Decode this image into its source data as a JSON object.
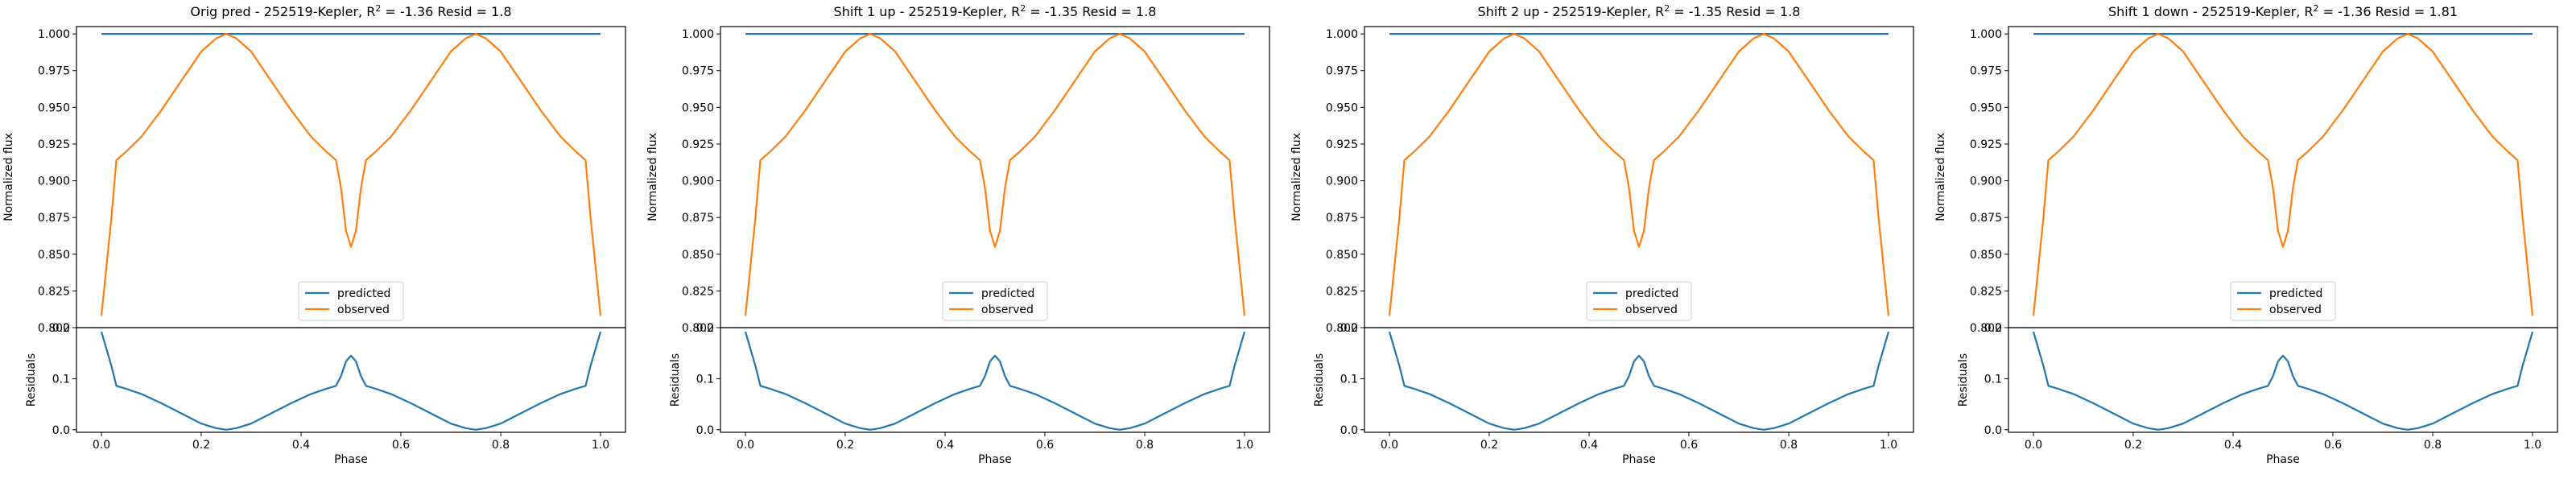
{
  "colors": {
    "predicted": "#1f77b4",
    "observed": "#ff7f0e",
    "axes": "#000000",
    "background": "#ffffff"
  },
  "chart_data": [
    {
      "type": "line",
      "title": "Orig pred - 252519-Kepler, R² = -1.36 Resid = 1.8",
      "title_parts": {
        "prefix": "Orig pred - 252519-Kepler, ",
        "r2": "-1.36",
        "resid": "1.8"
      },
      "xlabel": "Phase",
      "ylabel_top": "Normalized flux",
      "ylabel_bottom": "Residuals",
      "xlim": [
        -0.05,
        1.05
      ],
      "ylim_top": [
        0.8,
        1.005
      ],
      "ylim_bottom": [
        -0.005,
        0.2
      ],
      "xticks": [
        "0.0",
        "0.2",
        "0.4",
        "0.6",
        "0.8",
        "1.0"
      ],
      "yticks_top": [
        "0.800",
        "0.825",
        "0.850",
        "0.875",
        "0.900",
        "0.925",
        "0.950",
        "0.975",
        "1.000"
      ],
      "yticks_bottom": [
        "0.0",
        "0.1",
        "0.2"
      ],
      "legend": {
        "position": "lower center",
        "entries": [
          "predicted",
          "observed"
        ]
      },
      "predicted_level": 1.0,
      "predicted_offset": 0.0,
      "x": [
        0.0,
        0.02,
        0.03,
        0.05,
        0.08,
        0.12,
        0.16,
        0.2,
        0.23,
        0.25,
        0.27,
        0.3,
        0.34,
        0.38,
        0.42,
        0.45,
        0.47,
        0.48,
        0.49,
        0.5,
        0.51,
        0.52,
        0.53,
        0.55,
        0.58,
        0.62,
        0.66,
        0.7,
        0.73,
        0.75,
        0.77,
        0.8,
        0.84,
        0.88,
        0.92,
        0.95,
        0.97,
        0.98,
        1.0
      ],
      "observed": [
        0.808,
        0.875,
        0.914,
        0.92,
        0.93,
        0.948,
        0.968,
        0.988,
        0.997,
        1.0,
        0.997,
        0.988,
        0.968,
        0.948,
        0.93,
        0.92,
        0.914,
        0.895,
        0.866,
        0.855,
        0.866,
        0.895,
        0.914,
        0.92,
        0.93,
        0.948,
        0.968,
        0.988,
        0.997,
        1.0,
        0.997,
        0.988,
        0.968,
        0.948,
        0.93,
        0.92,
        0.914,
        0.875,
        0.808
      ]
    },
    {
      "type": "line",
      "title": "Shift 1 up - 252519-Kepler, R² = -1.35 Resid = 1.8",
      "title_parts": {
        "prefix": "Shift 1 up - 252519-Kepler, ",
        "r2": "-1.35",
        "resid": "1.8"
      },
      "xlabel": "Phase",
      "ylabel_top": "Normalized flux",
      "ylabel_bottom": "Residuals",
      "xlim": [
        -0.05,
        1.05
      ],
      "ylim_top": [
        0.8,
        1.005
      ],
      "ylim_bottom": [
        -0.005,
        0.2
      ],
      "xticks": [
        "0.0",
        "0.2",
        "0.4",
        "0.6",
        "0.8",
        "1.0"
      ],
      "yticks_top": [
        "0.800",
        "0.825",
        "0.850",
        "0.875",
        "0.900",
        "0.925",
        "0.950",
        "0.975",
        "1.000"
      ],
      "yticks_bottom": [
        "0.0",
        "0.1",
        "0.2"
      ],
      "legend": {
        "position": "lower center",
        "entries": [
          "predicted",
          "observed"
        ]
      },
      "predicted_level": 1.0,
      "predicted_offset": 0.0,
      "x": [
        0.0,
        0.02,
        0.03,
        0.05,
        0.08,
        0.12,
        0.16,
        0.2,
        0.23,
        0.25,
        0.27,
        0.3,
        0.34,
        0.38,
        0.42,
        0.45,
        0.47,
        0.48,
        0.49,
        0.5,
        0.51,
        0.52,
        0.53,
        0.55,
        0.58,
        0.62,
        0.66,
        0.7,
        0.73,
        0.75,
        0.77,
        0.8,
        0.84,
        0.88,
        0.92,
        0.95,
        0.97,
        0.98,
        1.0
      ],
      "observed": [
        0.808,
        0.875,
        0.914,
        0.92,
        0.93,
        0.948,
        0.968,
        0.988,
        0.997,
        1.0,
        0.997,
        0.988,
        0.968,
        0.948,
        0.93,
        0.92,
        0.914,
        0.895,
        0.866,
        0.855,
        0.866,
        0.895,
        0.914,
        0.92,
        0.93,
        0.948,
        0.968,
        0.988,
        0.997,
        1.0,
        0.997,
        0.988,
        0.968,
        0.948,
        0.93,
        0.92,
        0.914,
        0.875,
        0.808
      ]
    },
    {
      "type": "line",
      "title": "Shift 2 up - 252519-Kepler, R² = -1.35 Resid = 1.8",
      "title_parts": {
        "prefix": "Shift 2 up - 252519-Kepler, ",
        "r2": "-1.35",
        "resid": "1.8"
      },
      "xlabel": "Phase",
      "ylabel_top": "Normalized flux",
      "ylabel_bottom": "Residuals",
      "xlim": [
        -0.05,
        1.05
      ],
      "ylim_top": [
        0.8,
        1.005
      ],
      "ylim_bottom": [
        -0.005,
        0.2
      ],
      "xticks": [
        "0.0",
        "0.2",
        "0.4",
        "0.6",
        "0.8",
        "1.0"
      ],
      "yticks_top": [
        "0.800",
        "0.825",
        "0.850",
        "0.875",
        "0.900",
        "0.925",
        "0.950",
        "0.975",
        "1.000"
      ],
      "yticks_bottom": [
        "0.0",
        "0.1",
        "0.2"
      ],
      "legend": {
        "position": "lower center",
        "entries": [
          "predicted",
          "observed"
        ]
      },
      "predicted_level": 1.0,
      "predicted_offset": 0.0,
      "x": [
        0.0,
        0.02,
        0.03,
        0.05,
        0.08,
        0.12,
        0.16,
        0.2,
        0.23,
        0.25,
        0.27,
        0.3,
        0.34,
        0.38,
        0.42,
        0.45,
        0.47,
        0.48,
        0.49,
        0.5,
        0.51,
        0.52,
        0.53,
        0.55,
        0.58,
        0.62,
        0.66,
        0.7,
        0.73,
        0.75,
        0.77,
        0.8,
        0.84,
        0.88,
        0.92,
        0.95,
        0.97,
        0.98,
        1.0
      ],
      "observed": [
        0.808,
        0.875,
        0.914,
        0.92,
        0.93,
        0.948,
        0.968,
        0.988,
        0.997,
        1.0,
        0.997,
        0.988,
        0.968,
        0.948,
        0.93,
        0.92,
        0.914,
        0.895,
        0.866,
        0.855,
        0.866,
        0.895,
        0.914,
        0.92,
        0.93,
        0.948,
        0.968,
        0.988,
        0.997,
        1.0,
        0.997,
        0.988,
        0.968,
        0.948,
        0.93,
        0.92,
        0.914,
        0.875,
        0.808
      ]
    },
    {
      "type": "line",
      "title": "Shift 1 down - 252519-Kepler, R² = -1.36 Resid = 1.81",
      "title_parts": {
        "prefix": "Shift 1 down - 252519-Kepler, ",
        "r2": "-1.36",
        "resid": "1.81"
      },
      "xlabel": "Phase",
      "ylabel_top": "Normalized flux",
      "ylabel_bottom": "Residuals",
      "xlim": [
        -0.05,
        1.05
      ],
      "ylim_top": [
        0.8,
        1.005
      ],
      "ylim_bottom": [
        -0.005,
        0.2
      ],
      "xticks": [
        "0.0",
        "0.2",
        "0.4",
        "0.6",
        "0.8",
        "1.0"
      ],
      "yticks_top": [
        "0.800",
        "0.825",
        "0.850",
        "0.875",
        "0.900",
        "0.925",
        "0.950",
        "0.975",
        "1.000"
      ],
      "yticks_bottom": [
        "0.0",
        "0.1",
        "0.2"
      ],
      "legend": {
        "position": "lower center",
        "entries": [
          "predicted",
          "observed"
        ]
      },
      "predicted_level": 1.0,
      "predicted_offset": 0.0,
      "x": [
        0.0,
        0.02,
        0.03,
        0.05,
        0.08,
        0.12,
        0.16,
        0.2,
        0.23,
        0.25,
        0.27,
        0.3,
        0.34,
        0.38,
        0.42,
        0.45,
        0.47,
        0.48,
        0.49,
        0.5,
        0.51,
        0.52,
        0.53,
        0.55,
        0.58,
        0.62,
        0.66,
        0.7,
        0.73,
        0.75,
        0.77,
        0.8,
        0.84,
        0.88,
        0.92,
        0.95,
        0.97,
        0.98,
        1.0
      ],
      "observed": [
        0.808,
        0.875,
        0.914,
        0.92,
        0.93,
        0.948,
        0.968,
        0.988,
        0.997,
        1.0,
        0.997,
        0.988,
        0.968,
        0.948,
        0.93,
        0.92,
        0.914,
        0.895,
        0.866,
        0.855,
        0.866,
        0.895,
        0.914,
        0.92,
        0.93,
        0.948,
        0.968,
        0.988,
        0.997,
        1.0,
        0.997,
        0.988,
        0.968,
        0.948,
        0.93,
        0.92,
        0.914,
        0.875,
        0.808
      ]
    }
  ]
}
